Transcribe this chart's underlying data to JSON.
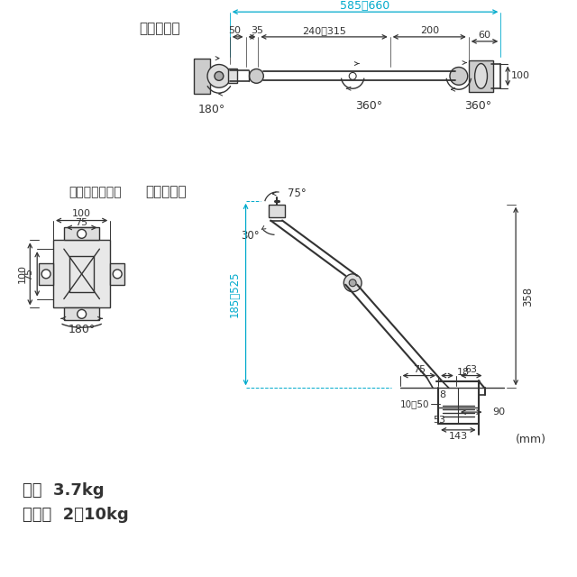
{
  "bg_color": "#ffffff",
  "line_color": "#333333",
  "dim_color": "#00aacc",
  "title_top": "《上面図》",
  "title_side": "《側面図》",
  "title_mount": "《取り付け部》",
  "weight_text": "重量  3.7kg",
  "load_text": "耐荷重  2～10kg",
  "unit_text": "(mm)",
  "top_dims": {
    "total": "585～660",
    "d1": "50",
    "d2": "35",
    "d3": "240～315",
    "d4": "200",
    "d5": "60",
    "d6": "100",
    "angle1": "180°",
    "angle2": "360°",
    "angle3": "360°"
  },
  "side_dims": {
    "height": "185～525",
    "right_height": "358",
    "angle1": "75°",
    "angle2": "30°",
    "d1": "75",
    "d2": "18",
    "d3": "10～50",
    "d4": "63",
    "d5": "8",
    "d6": "90",
    "d7": "53",
    "d8": "143"
  },
  "mount_dims": {
    "w1": "100",
    "w2": "75",
    "h1": "100",
    "h2": "75",
    "angle": "180°"
  }
}
